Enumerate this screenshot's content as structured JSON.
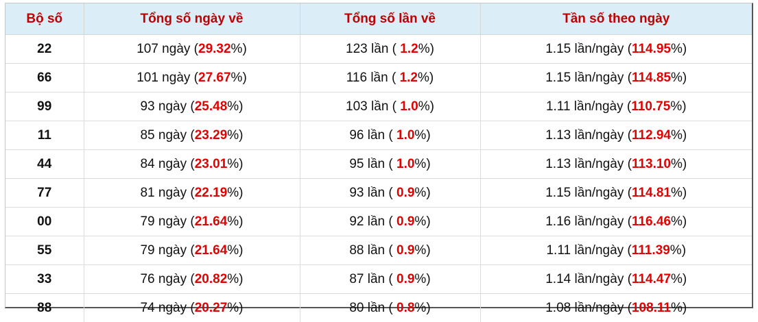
{
  "table": {
    "header": [
      "Bộ số",
      "Tổng số ngày về",
      "Tổng số lần về",
      "Tần số theo ngày"
    ],
    "rows": [
      [
        "22",
        [
          "107 ngày (",
          "29.32",
          "%)"
        ],
        [
          "123 lần ( ",
          "1.2",
          "%)"
        ],
        [
          "1.15 lần/ngày (",
          "114.95",
          "%)"
        ]
      ],
      [
        "66",
        [
          "101 ngày (",
          "27.67",
          "%)"
        ],
        [
          "116 lần ( ",
          "1.2",
          "%)"
        ],
        [
          "1.15 lần/ngày (",
          "114.85",
          "%)"
        ]
      ],
      [
        "99",
        [
          "93 ngày (",
          "25.48",
          "%)"
        ],
        [
          "103 lần ( ",
          "1.0",
          "%)"
        ],
        [
          "1.11 lần/ngày (",
          "110.75",
          "%)"
        ]
      ],
      [
        "11",
        [
          "85 ngày (",
          "23.29",
          "%)"
        ],
        [
          "96 lần ( ",
          "1.0",
          "%)"
        ],
        [
          "1.13 lần/ngày (",
          "112.94",
          "%)"
        ]
      ],
      [
        "44",
        [
          "84 ngày (",
          "23.01",
          "%)"
        ],
        [
          "95 lần ( ",
          "1.0",
          "%)"
        ],
        [
          "1.13 lần/ngày (",
          "113.10",
          "%)"
        ]
      ],
      [
        "77",
        [
          "81 ngày (",
          "22.19",
          "%)"
        ],
        [
          "93 lần ( ",
          "0.9",
          "%)"
        ],
        [
          "1.15 lần/ngày (",
          "114.81",
          "%)"
        ]
      ],
      [
        "00",
        [
          "79 ngày (",
          "21.64",
          "%)"
        ],
        [
          "92 lần ( ",
          "0.9",
          "%)"
        ],
        [
          "1.16 lần/ngày (",
          "116.46",
          "%)"
        ]
      ],
      [
        "55",
        [
          "79 ngày (",
          "21.64",
          "%)"
        ],
        [
          "88 lần ( ",
          "0.9",
          "%)"
        ],
        [
          "1.11 lần/ngày (",
          "111.39",
          "%)"
        ]
      ],
      [
        "33",
        [
          "76 ngày (",
          "20.82",
          "%)"
        ],
        [
          "87 lần ( ",
          "0.9",
          "%)"
        ],
        [
          "1.14 lần/ngày (",
          "114.47",
          "%)"
        ]
      ],
      [
        "88",
        [
          "74 ngày (",
          "20.27",
          "%)"
        ],
        [
          "80 lần ( ",
          "0.8",
          "%)"
        ],
        [
          "1.08 lần/ngày (",
          "108.11",
          "%)"
        ]
      ]
    ]
  }
}
